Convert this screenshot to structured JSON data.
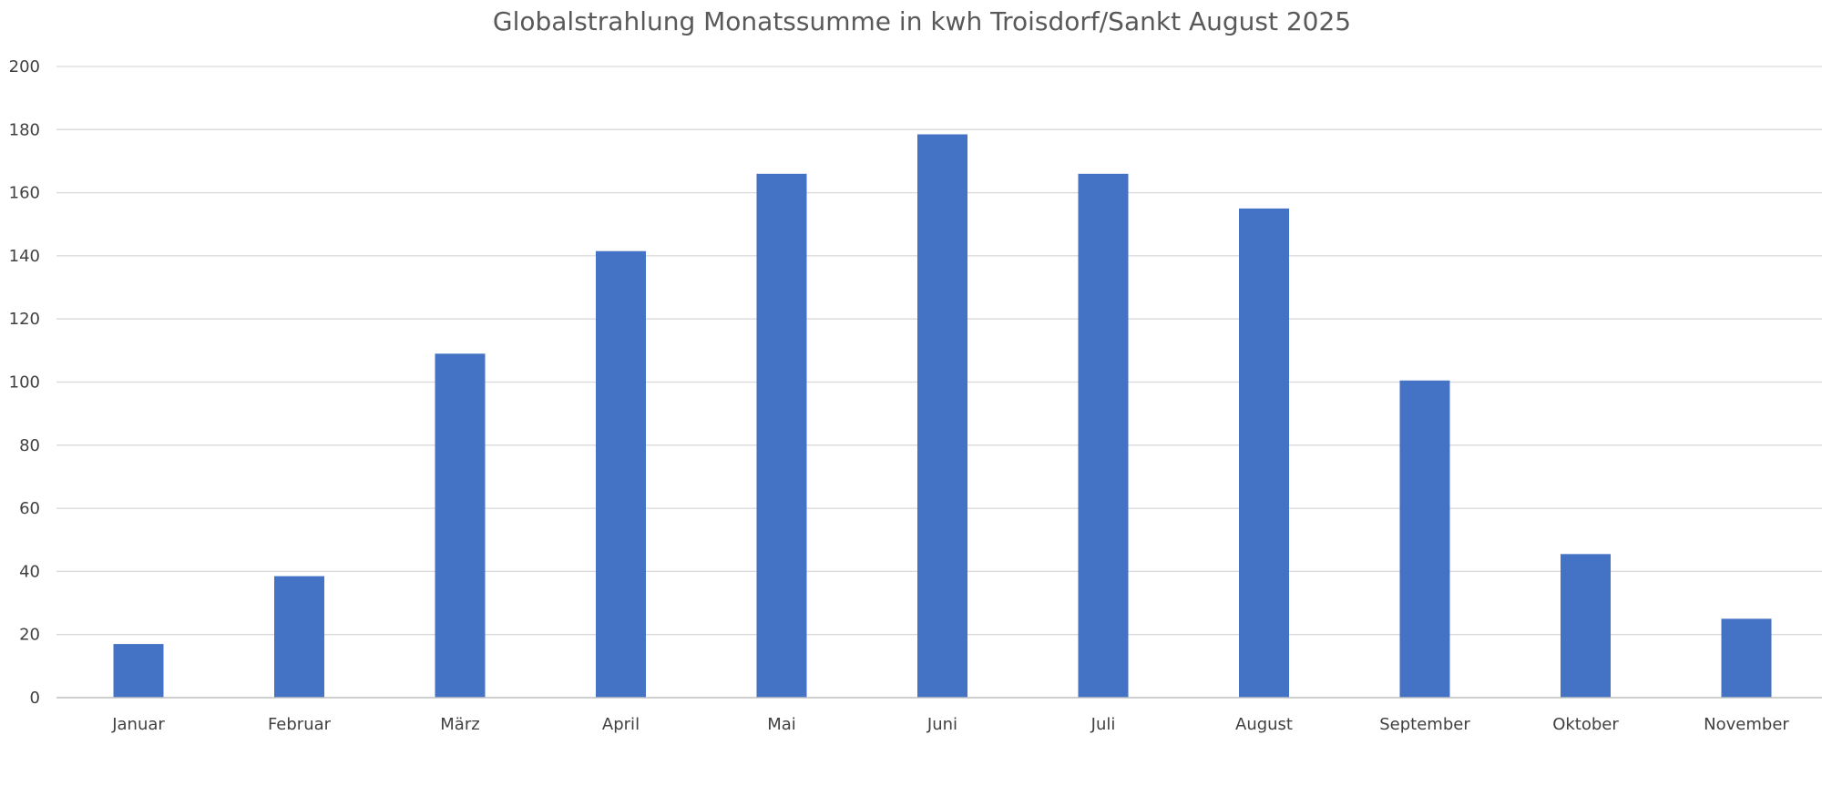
{
  "chart_data": {
    "type": "bar",
    "title": "Globalstrahlung  Monatssumme in kwh Troisdorf/Sankt August 2025",
    "xlabel": "",
    "ylabel": "",
    "categories": [
      "Januar",
      "Februar",
      "März",
      "April",
      "Mai",
      "Juni",
      "Juli",
      "August",
      "September",
      "Oktober",
      "November"
    ],
    "series": [
      {
        "values": [
          17,
          38.5,
          109,
          141.5,
          166,
          178.5,
          166,
          155,
          100.5,
          45.5,
          25
        ]
      }
    ],
    "ylim": [
      0,
      200
    ],
    "yticks": [
      0,
      20,
      40,
      60,
      80,
      100,
      120,
      140,
      160,
      180,
      200
    ],
    "grid": true,
    "legend": "none",
    "bar_color": "#4472c4",
    "grid_color": "#d9d9d9"
  }
}
